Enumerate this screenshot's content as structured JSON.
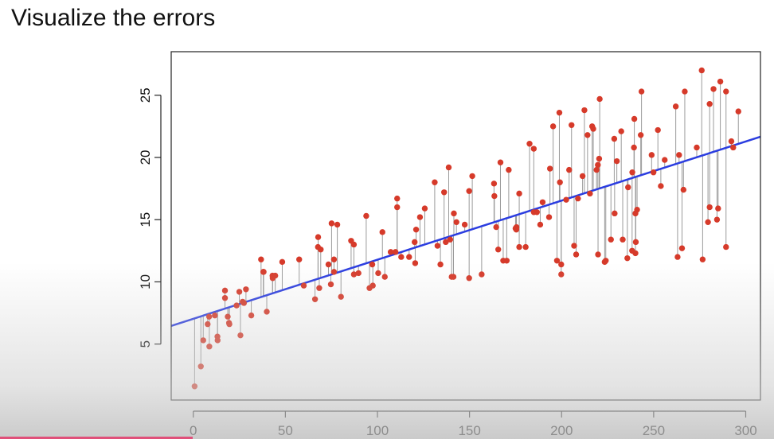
{
  "slide": {
    "title": "Visualize the errors"
  },
  "colors": {
    "points": "#d63a2a",
    "fit_line": "#2b3de0",
    "residuals": "#9a9a9a",
    "axis": "#222222"
  },
  "chart_data": {
    "type": "scatter",
    "title": "",
    "xlabel": "",
    "ylabel": "",
    "xlim": [
      -12,
      308
    ],
    "ylim": [
      0.5,
      28.5
    ],
    "xticks": [
      0,
      50,
      100,
      150,
      200,
      250,
      300
    ],
    "yticks": [
      5,
      10,
      15,
      20,
      25
    ],
    "xtick_labels": [
      "0",
      "50",
      "100",
      "150",
      "200",
      "250",
      "300"
    ],
    "ytick_labels": [
      "5",
      "10",
      "15",
      "20",
      "25"
    ],
    "grid": false,
    "legend": "none",
    "fit_line": {
      "intercept": 7.03,
      "slope": 0.0475
    },
    "residual_segments": true,
    "points": [
      [
        0.7,
        1.6
      ],
      [
        4.1,
        3.2
      ],
      [
        5.4,
        5.3
      ],
      [
        7.8,
        6.6
      ],
      [
        8.7,
        4.8
      ],
      [
        8.6,
        7.2
      ],
      [
        11.7,
        7.3
      ],
      [
        13.2,
        5.3
      ],
      [
        13.1,
        5.6
      ],
      [
        17.2,
        9.3
      ],
      [
        17.2,
        8.7
      ],
      [
        18.7,
        7.2
      ],
      [
        19.4,
        6.7
      ],
      [
        19.6,
        6.6
      ],
      [
        23.5,
        8.1
      ],
      [
        25.0,
        9.2
      ],
      [
        25.6,
        5.7
      ],
      [
        26.8,
        8.4
      ],
      [
        27.5,
        8.3
      ],
      [
        28.6,
        9.4
      ],
      [
        31.5,
        7.3
      ],
      [
        36.8,
        11.8
      ],
      [
        38.0,
        10.8
      ],
      [
        38.2,
        10.8
      ],
      [
        39.9,
        7.6
      ],
      [
        43.0,
        10.5
      ],
      [
        43.1,
        10.3
      ],
      [
        44.5,
        10.5
      ],
      [
        48.3,
        11.6
      ],
      [
        57.5,
        11.8
      ],
      [
        60.0,
        9.7
      ],
      [
        66.1,
        8.6
      ],
      [
        67.7,
        12.8
      ],
      [
        67.8,
        13.6
      ],
      [
        68.4,
        9.5
      ],
      [
        69.2,
        12.6
      ],
      [
        73.4,
        11.4
      ],
      [
        74.7,
        9.8
      ],
      [
        75.1,
        14.7
      ],
      [
        76.4,
        10.8
      ],
      [
        76.4,
        11.8
      ],
      [
        78.2,
        14.6
      ],
      [
        80.2,
        8.8
      ],
      [
        85.7,
        13.3
      ],
      [
        87.2,
        13.0
      ],
      [
        87.2,
        10.6
      ],
      [
        89.7,
        10.7
      ],
      [
        93.9,
        15.3
      ],
      [
        95.7,
        9.5
      ],
      [
        97.2,
        11.4
      ],
      [
        97.5,
        9.7
      ],
      [
        100.4,
        10.7
      ],
      [
        102.7,
        14.0
      ],
      [
        104.0,
        10.4
      ],
      [
        107.2,
        12.4
      ],
      [
        109.8,
        12.4
      ],
      [
        110.7,
        16.7
      ],
      [
        110.7,
        16.0
      ],
      [
        112.9,
        12.0
      ],
      [
        117.2,
        12.0
      ],
      [
        120.2,
        13.2
      ],
      [
        120.5,
        11.5
      ],
      [
        121.0,
        14.2
      ],
      [
        123.1,
        15.2
      ],
      [
        125.7,
        15.9
      ],
      [
        131.1,
        18.0
      ],
      [
        132.6,
        12.9
      ],
      [
        134.2,
        11.4
      ],
      [
        136.2,
        17.2
      ],
      [
        137.1,
        13.2
      ],
      [
        138.7,
        19.2
      ],
      [
        139.5,
        13.4
      ],
      [
        140.3,
        10.4
      ],
      [
        141.3,
        10.4
      ],
      [
        141.5,
        15.5
      ],
      [
        142.9,
        14.8
      ],
      [
        147.4,
        14.6
      ],
      [
        149.8,
        10.3
      ],
      [
        149.8,
        17.3
      ],
      [
        151.5,
        18.5
      ],
      [
        156.6,
        10.6
      ],
      [
        163.3,
        17.9
      ],
      [
        163.5,
        16.9
      ],
      [
        164.5,
        14.4
      ],
      [
        165.6,
        12.6
      ],
      [
        166.8,
        19.6
      ],
      [
        168.3,
        11.7
      ],
      [
        170.2,
        11.7
      ],
      [
        171.3,
        19.0
      ],
      [
        175.0,
        14.3
      ],
      [
        175.4,
        14.2
      ],
      [
        175.5,
        14.4
      ],
      [
        177.0,
        17.1
      ],
      [
        177.0,
        12.8
      ],
      [
        180.5,
        12.8
      ],
      [
        182.6,
        21.1
      ],
      [
        184.9,
        20.7
      ],
      [
        184.9,
        15.6
      ],
      [
        186.6,
        15.6
      ],
      [
        188.4,
        14.6
      ],
      [
        189.7,
        16.4
      ],
      [
        193.2,
        15.2
      ],
      [
        193.7,
        19.1
      ],
      [
        195.4,
        22.5
      ],
      [
        197.5,
        11.7
      ],
      [
        198.8,
        23.6
      ],
      [
        199.1,
        18.0
      ],
      [
        199.8,
        10.6
      ],
      [
        199.8,
        11.4
      ],
      [
        202.5,
        16.6
      ],
      [
        204.1,
        19.0
      ],
      [
        205.4,
        22.6
      ],
      [
        206.8,
        12.9
      ],
      [
        207.9,
        12.2
      ],
      [
        208.9,
        16.7
      ],
      [
        211.4,
        18.5
      ],
      [
        212.4,
        23.8
      ],
      [
        214.1,
        21.8
      ],
      [
        215.4,
        17.1
      ],
      [
        216.6,
        22.5
      ],
      [
        217.2,
        22.3
      ],
      [
        219.0,
        19.0
      ],
      [
        219.7,
        19.4
      ],
      [
        219.8,
        12.2
      ],
      [
        220.4,
        19.9
      ],
      [
        220.7,
        24.7
      ],
      [
        223.4,
        11.6
      ],
      [
        224.0,
        11.7
      ],
      [
        226.8,
        13.4
      ],
      [
        228.6,
        21.5
      ],
      [
        228.8,
        15.5
      ],
      [
        230.0,
        19.7
      ],
      [
        232.4,
        22.1
      ],
      [
        233.2,
        13.4
      ],
      [
        235.7,
        11.9
      ],
      [
        236.1,
        17.6
      ],
      [
        238.4,
        18.8
      ],
      [
        238.3,
        12.5
      ],
      [
        239.3,
        20.8
      ],
      [
        239.5,
        23.1
      ],
      [
        240.1,
        15.5
      ],
      [
        240.1,
        12.3
      ],
      [
        240.3,
        13.2
      ],
      [
        241.0,
        15.8
      ],
      [
        243.0,
        21.8
      ],
      [
        243.4,
        25.3
      ],
      [
        248.9,
        20.2
      ],
      [
        249.9,
        18.8
      ],
      [
        252.3,
        22.2
      ],
      [
        253.9,
        17.7
      ],
      [
        256.0,
        19.8
      ],
      [
        262.0,
        24.1
      ],
      [
        263.0,
        12.0
      ],
      [
        263.8,
        20.2
      ],
      [
        265.4,
        12.7
      ],
      [
        266.2,
        17.4
      ],
      [
        266.9,
        25.3
      ],
      [
        273.4,
        20.8
      ],
      [
        276.1,
        27.0
      ],
      [
        276.6,
        11.8
      ],
      [
        279.5,
        14.8
      ],
      [
        280.4,
        16.0
      ],
      [
        280.4,
        24.3
      ],
      [
        282.5,
        25.5
      ],
      [
        284.4,
        15.0
      ],
      [
        285.0,
        15.9
      ],
      [
        286.2,
        26.1
      ],
      [
        289.3,
        12.8
      ],
      [
        289.3,
        25.3
      ],
      [
        292.2,
        21.3
      ],
      [
        293.2,
        20.8
      ],
      [
        296.0,
        23.7
      ]
    ]
  }
}
